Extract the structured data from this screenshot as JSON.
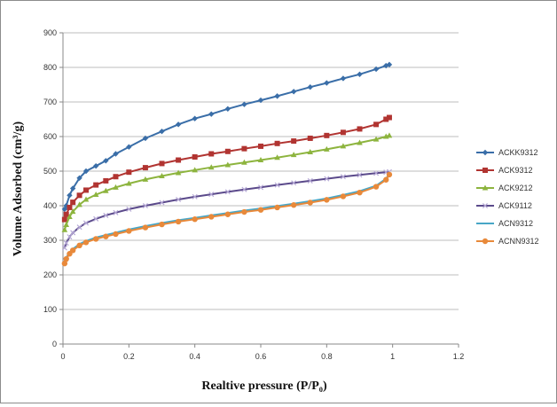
{
  "chart_data": {
    "type": "line",
    "xlabel": "Realtive pressure (P/P₀)",
    "ylabel": "Volume Adsorbed (cm³/g)",
    "xlim": [
      0,
      1.2
    ],
    "ylim": [
      0,
      900
    ],
    "xticks": [
      0,
      0.2,
      0.4,
      0.6,
      0.8,
      1,
      1.2
    ],
    "yticks": [
      0,
      100,
      200,
      300,
      400,
      500,
      600,
      700,
      800,
      900
    ],
    "grid": "horizontal",
    "legend": "right",
    "series": [
      {
        "name": "ACKK9312",
        "color": "#3a6ea8",
        "marker": "diamond",
        "x": [
          0.005,
          0.01,
          0.02,
          0.03,
          0.05,
          0.07,
          0.1,
          0.13,
          0.16,
          0.2,
          0.25,
          0.3,
          0.35,
          0.4,
          0.45,
          0.5,
          0.55,
          0.6,
          0.65,
          0.7,
          0.75,
          0.8,
          0.85,
          0.9,
          0.95,
          0.98,
          0.99
        ],
        "y": [
          390,
          400,
          430,
          450,
          480,
          500,
          515,
          530,
          550,
          570,
          595,
          615,
          635,
          652,
          665,
          680,
          693,
          705,
          717,
          730,
          743,
          755,
          768,
          780,
          795,
          805,
          808
        ]
      },
      {
        "name": "ACK9312",
        "color": "#b13431",
        "marker": "square",
        "x": [
          0.005,
          0.01,
          0.02,
          0.03,
          0.05,
          0.07,
          0.1,
          0.13,
          0.16,
          0.2,
          0.25,
          0.3,
          0.35,
          0.4,
          0.45,
          0.5,
          0.55,
          0.6,
          0.65,
          0.7,
          0.75,
          0.8,
          0.85,
          0.9,
          0.95,
          0.98,
          0.99
        ],
        "y": [
          360,
          375,
          395,
          410,
          430,
          445,
          460,
          472,
          484,
          497,
          510,
          522,
          532,
          541,
          550,
          557,
          565,
          572,
          580,
          587,
          595,
          603,
          612,
          622,
          635,
          650,
          655
        ]
      },
      {
        "name": "ACK9212",
        "color": "#8db43e",
        "marker": "triangle",
        "x": [
          0.005,
          0.01,
          0.02,
          0.03,
          0.05,
          0.07,
          0.1,
          0.13,
          0.16,
          0.2,
          0.25,
          0.3,
          0.35,
          0.4,
          0.45,
          0.5,
          0.55,
          0.6,
          0.65,
          0.7,
          0.75,
          0.8,
          0.85,
          0.9,
          0.95,
          0.98,
          0.99
        ],
        "y": [
          330,
          345,
          368,
          383,
          403,
          418,
          432,
          443,
          453,
          464,
          476,
          486,
          495,
          503,
          511,
          518,
          525,
          532,
          539,
          547,
          555,
          563,
          572,
          582,
          592,
          600,
          603
        ]
      },
      {
        "name": "ACK9112",
        "color": "#5b4a8b",
        "marker": "cross",
        "x": [
          0.005,
          0.01,
          0.02,
          0.03,
          0.05,
          0.07,
          0.1,
          0.13,
          0.16,
          0.2,
          0.25,
          0.3,
          0.35,
          0.4,
          0.45,
          0.5,
          0.55,
          0.6,
          0.65,
          0.7,
          0.75,
          0.8,
          0.85,
          0.9,
          0.95,
          0.98,
          0.99
        ],
        "y": [
          278,
          292,
          310,
          322,
          338,
          350,
          362,
          372,
          380,
          390,
          400,
          409,
          418,
          426,
          433,
          440,
          447,
          453,
          460,
          466,
          472,
          478,
          484,
          489,
          494,
          497,
          498
        ]
      },
      {
        "name": "ACN9312",
        "color": "#48a6c6",
        "marker": "none",
        "x": [
          0.005,
          0.01,
          0.02,
          0.03,
          0.05,
          0.07,
          0.1,
          0.13,
          0.16,
          0.2,
          0.25,
          0.3,
          0.35,
          0.4,
          0.45,
          0.5,
          0.55,
          0.6,
          0.65,
          0.7,
          0.75,
          0.8,
          0.85,
          0.9,
          0.95,
          0.98,
          0.99
        ],
        "y": [
          238,
          250,
          265,
          275,
          289,
          298,
          308,
          315,
          322,
          331,
          341,
          350,
          358,
          365,
          372,
          379,
          386,
          392,
          399,
          406,
          413,
          421,
          431,
          442,
          458,
          478,
          492
        ]
      },
      {
        "name": "ACNN9312",
        "color": "#e8893a",
        "marker": "circle",
        "x": [
          0.005,
          0.01,
          0.02,
          0.03,
          0.05,
          0.07,
          0.1,
          0.13,
          0.16,
          0.2,
          0.25,
          0.3,
          0.35,
          0.4,
          0.45,
          0.5,
          0.55,
          0.6,
          0.65,
          0.7,
          0.75,
          0.8,
          0.85,
          0.9,
          0.95,
          0.98,
          0.99
        ],
        "y": [
          233,
          246,
          261,
          271,
          285,
          294,
          304,
          311,
          318,
          327,
          337,
          346,
          354,
          361,
          368,
          375,
          382,
          388,
          395,
          402,
          409,
          417,
          427,
          438,
          455,
          475,
          490
        ]
      }
    ]
  }
}
